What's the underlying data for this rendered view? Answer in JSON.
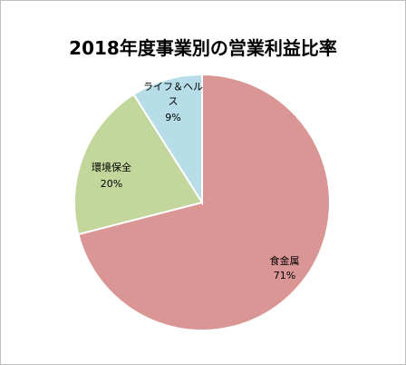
{
  "chart_data": {
    "type": "pie",
    "title": "2018年度事業別の営業利益比率",
    "slices": [
      {
        "label": "食金属",
        "value": 71,
        "percent_label": "71%",
        "color": "#d99694"
      },
      {
        "label": "環境保全",
        "value": 20,
        "percent_label": "20%",
        "color": "#c3d69b"
      },
      {
        "label_lines": [
          "ライフ＆ヘル",
          "ス"
        ],
        "value": 9,
        "percent_label": "9%",
        "color": "#b7dde8"
      }
    ],
    "start_angle_deg": 0,
    "direction": "clockwise",
    "legend": "none",
    "data_labels": "inside"
  }
}
